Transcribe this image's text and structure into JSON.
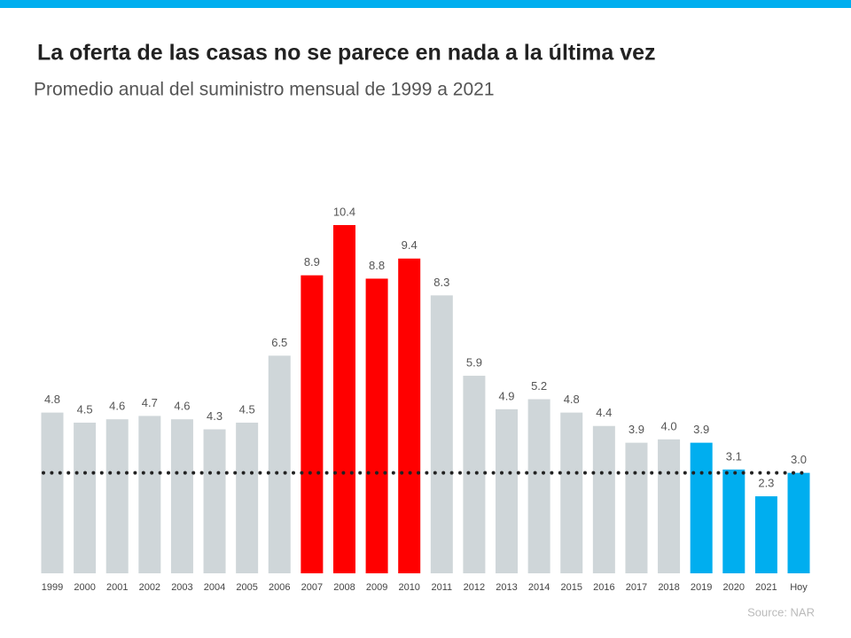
{
  "chart_data": {
    "type": "bar",
    "title": "La oferta de las casas no se parece en nada a la última vez",
    "subtitle": "Promedio anual del suministro mensual de 1999 a 2021",
    "source": "Source: NAR",
    "categories": [
      "1999",
      "2000",
      "2001",
      "2002",
      "2003",
      "2004",
      "2005",
      "2006",
      "2007",
      "2008",
      "2009",
      "2010",
      "2011",
      "2012",
      "2013",
      "2014",
      "2015",
      "2016",
      "2017",
      "2018",
      "2019",
      "2020",
      "2021",
      "Hoy"
    ],
    "values": [
      4.8,
      4.5,
      4.6,
      4.7,
      4.6,
      4.3,
      4.5,
      6.5,
      8.9,
      10.4,
      8.8,
      9.4,
      8.3,
      5.9,
      4.9,
      5.2,
      4.8,
      4.4,
      3.9,
      4.0,
      3.9,
      3.1,
      2.3,
      3.0
    ],
    "value_labels": [
      "4.8",
      "4.5",
      "4.6",
      "4.7",
      "4.6",
      "4.3",
      "4.5",
      "6.5",
      "8.9",
      "10.4",
      "8.8",
      "9.4",
      "8.3",
      "5.9",
      "4.9",
      "5.2",
      "4.8",
      "4.4",
      "3.9",
      "4.0",
      "3.9",
      "3.1",
      "2.3",
      "3.0"
    ],
    "colors": [
      "#cfd6d9",
      "#cfd6d9",
      "#cfd6d9",
      "#cfd6d9",
      "#cfd6d9",
      "#cfd6d9",
      "#cfd6d9",
      "#cfd6d9",
      "#ff0000",
      "#ff0000",
      "#ff0000",
      "#ff0000",
      "#cfd6d9",
      "#cfd6d9",
      "#cfd6d9",
      "#cfd6d9",
      "#cfd6d9",
      "#cfd6d9",
      "#cfd6d9",
      "#cfd6d9",
      "#00aeef",
      "#00aeef",
      "#00aeef",
      "#00aeef"
    ],
    "reference_line": 3.0,
    "reference_color": "#222222"
  }
}
